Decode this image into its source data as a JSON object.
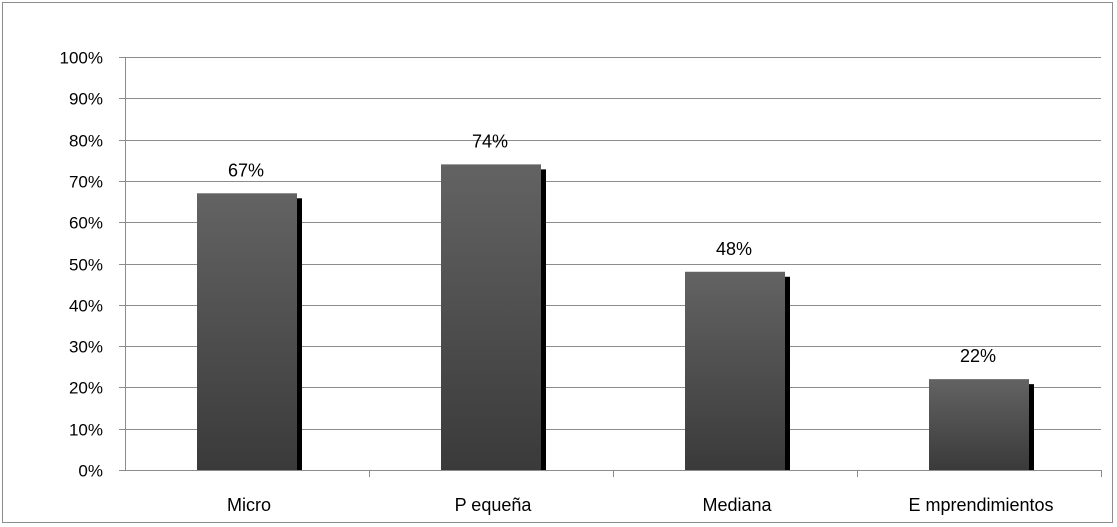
{
  "chart_data": {
    "type": "bar",
    "categories": [
      "Micro",
      "P equeña",
      "Mediana",
      "E mprendimientos"
    ],
    "values": [
      67,
      74,
      48,
      22
    ],
    "data_labels": [
      "67%",
      "74%",
      "48%",
      "22%"
    ],
    "ylim": [
      0,
      100
    ],
    "yticks": [
      0,
      10,
      20,
      30,
      40,
      50,
      60,
      70,
      80,
      90,
      100
    ],
    "ytick_labels": [
      "0%",
      "10%",
      "20%",
      "30%",
      "40%",
      "50%",
      "60%",
      "70%",
      "80%",
      "90%",
      "100%"
    ],
    "title": "",
    "xlabel": "",
    "ylabel": "",
    "grid": true,
    "legend": "none",
    "colors": {
      "bar_top": "#636363",
      "bar_bottom": "#3a3a3a",
      "bar_shadow": "#000000",
      "gridline": "#8c8c8c",
      "axis": "#8c8c8c"
    }
  }
}
